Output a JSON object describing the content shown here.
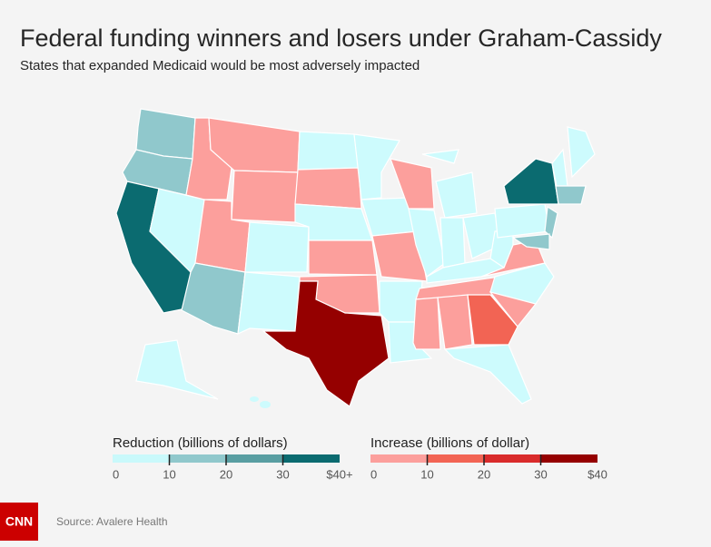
{
  "header": {
    "title": "Federal funding winners and losers under Graham-Cassidy",
    "subtitle": "States that expanded Medicaid would be most adversely impacted"
  },
  "legends": [
    {
      "title": "Reduction (billions of dollars)",
      "colors": [
        "#c9f9fb",
        "#90c8cc",
        "#599ea2",
        "#0b6b70"
      ],
      "lim": [
        0,
        40
      ],
      "ticks": [
        0,
        10,
        20,
        30,
        {
          "value": 40,
          "label": "$40+"
        }
      ]
    },
    {
      "title": "Increase (billions of dollar)",
      "colors": [
        "#fc9f9c",
        "#f26454",
        "#d92b2b",
        "#950000"
      ],
      "lim": [
        0,
        40
      ],
      "ticks": [
        0,
        10,
        20,
        30,
        {
          "value": 40,
          "label": "$40"
        }
      ]
    }
  ],
  "footer": {
    "logo": "CNN",
    "source": "Source: Avalere Health"
  }
}
